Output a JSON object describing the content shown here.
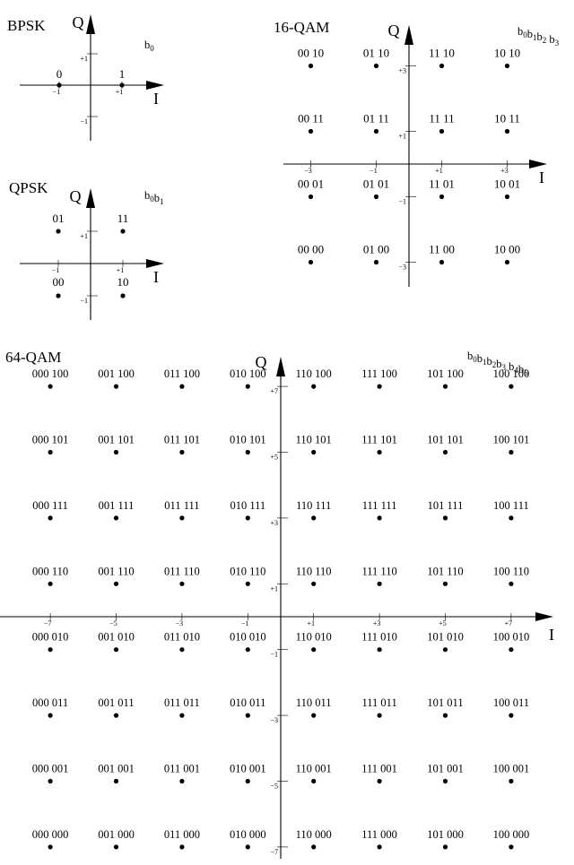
{
  "diagrams": {
    "bpsk": {
      "title": "BPSK",
      "legend": {
        "bits": [
          "0"
        ]
      },
      "x_axis": "I",
      "y_axis": "Q",
      "x_ticks": [
        {
          "v": -1,
          "label": "−1"
        },
        {
          "v": 1,
          "label": "+1"
        }
      ],
      "y_ticks": [
        {
          "v": 1,
          "label": "+1"
        },
        {
          "v": -1,
          "label": "−1"
        }
      ],
      "points": [
        {
          "i": -1,
          "q": 0,
          "label": "0"
        },
        {
          "i": 1,
          "q": 0,
          "label": "1"
        }
      ]
    },
    "qpsk": {
      "title": "QPSK",
      "legend": {
        "bits": [
          "0",
          "1"
        ]
      },
      "x_axis": "I",
      "y_axis": "Q",
      "x_ticks": [
        {
          "v": -1,
          "label": "−1"
        },
        {
          "v": 1,
          "label": "+1"
        }
      ],
      "y_ticks": [
        {
          "v": 1,
          "label": "+1"
        },
        {
          "v": -1,
          "label": "−1"
        }
      ],
      "points": [
        {
          "i": -1,
          "q": 1,
          "label": "01"
        },
        {
          "i": 1,
          "q": 1,
          "label": "11"
        },
        {
          "i": -1,
          "q": -1,
          "label": "00"
        },
        {
          "i": 1,
          "q": -1,
          "label": "10"
        }
      ]
    },
    "qam16": {
      "title": "16-QAM",
      "legend": {
        "bits": [
          "0",
          "1",
          "2",
          "3"
        ]
      },
      "x_axis": "I",
      "y_axis": "Q",
      "x_ticks": [
        {
          "v": -3,
          "label": "−3"
        },
        {
          "v": -1,
          "label": "−1"
        },
        {
          "v": 1,
          "label": "+1"
        },
        {
          "v": 3,
          "label": "+3"
        }
      ],
      "y_ticks": [
        {
          "v": 3,
          "label": "+3"
        },
        {
          "v": 1,
          "label": "+1"
        },
        {
          "v": -1,
          "label": "−1"
        },
        {
          "v": -3,
          "label": "−3"
        }
      ],
      "levels": [
        -3,
        -1,
        1,
        3
      ],
      "col_bits": [
        "00",
        "01",
        "11",
        "10"
      ],
      "row_bits": {
        "3": "10",
        "1": "11",
        "-1": "01",
        "-3": "00"
      }
    },
    "qam64": {
      "title": "64-QAM",
      "legend": {
        "bits": [
          "0",
          "1",
          "2",
          "3",
          "4",
          "5"
        ]
      },
      "x_axis": "I",
      "y_axis": "Q",
      "x_ticks": [
        {
          "v": -7,
          "label": "−7"
        },
        {
          "v": -5,
          "label": "−5"
        },
        {
          "v": -3,
          "label": "−3"
        },
        {
          "v": -1,
          "label": "−1"
        },
        {
          "v": 1,
          "label": "+1"
        },
        {
          "v": 3,
          "label": "+3"
        },
        {
          "v": 5,
          "label": "+5"
        },
        {
          "v": 7,
          "label": "+7"
        }
      ],
      "y_ticks": [
        {
          "v": 7,
          "label": "+7"
        },
        {
          "v": 5,
          "label": "+5"
        },
        {
          "v": 3,
          "label": "+3"
        },
        {
          "v": 1,
          "label": "+1"
        },
        {
          "v": -1,
          "label": "−1"
        },
        {
          "v": -3,
          "label": "−3"
        },
        {
          "v": -5,
          "label": "−5"
        },
        {
          "v": -7,
          "label": "−7"
        }
      ],
      "levels": [
        -7,
        -5,
        -3,
        -1,
        1,
        3,
        5,
        7
      ],
      "col_bits": [
        "000",
        "001",
        "011",
        "010",
        "110",
        "111",
        "101",
        "100"
      ],
      "row_bits": {
        "7": "100",
        "5": "101",
        "3": "111",
        "1": "110",
        "-1": "010",
        "-3": "011",
        "-5": "001",
        "-7": "000"
      }
    }
  }
}
